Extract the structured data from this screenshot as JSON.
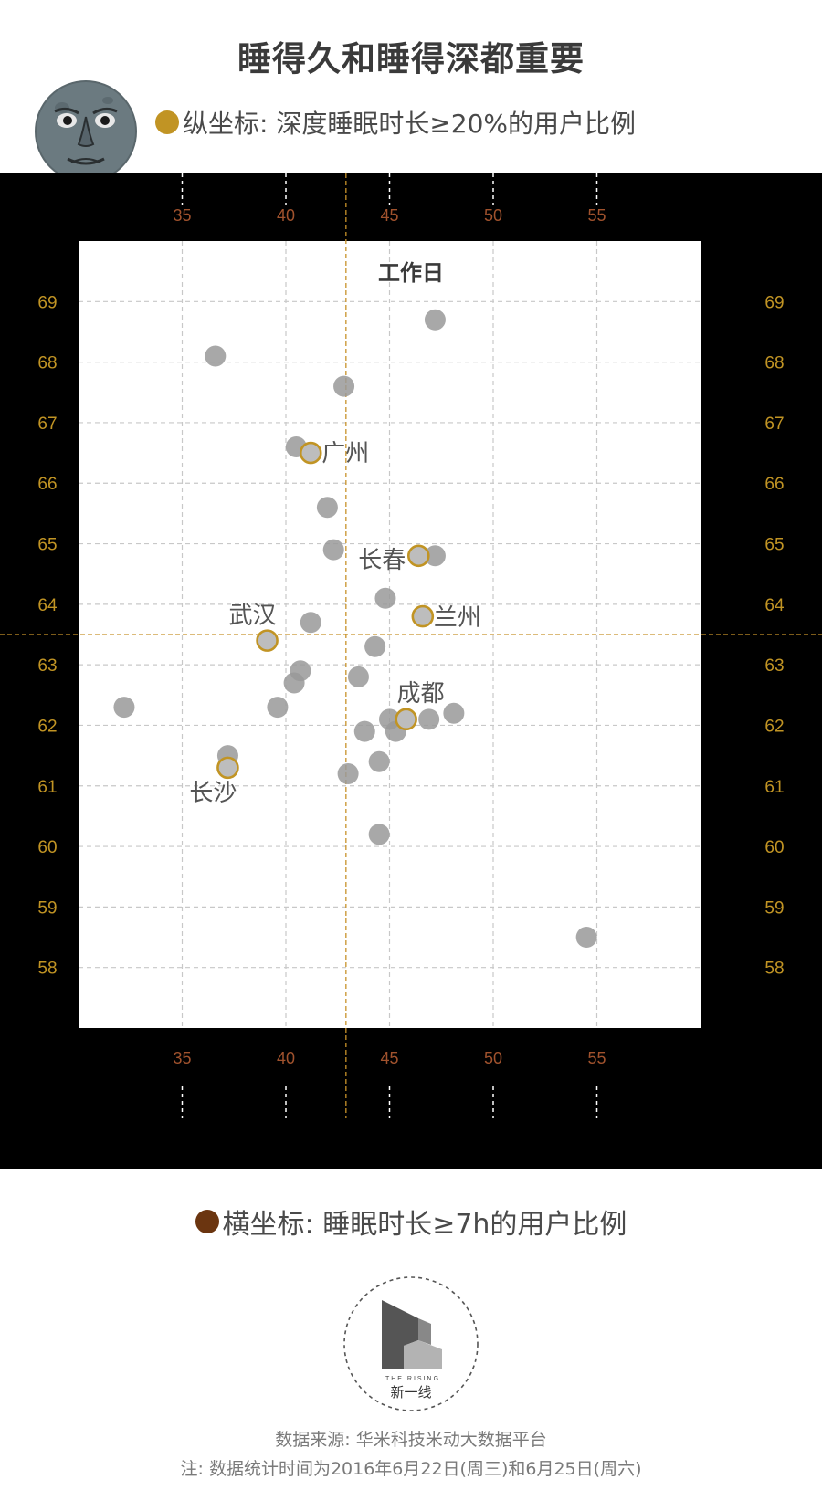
{
  "title": "睡得久和睡得深都重要",
  "y_legend": "纵坐标: 深度睡眠时长≥20%的用户比例",
  "x_legend": "横坐标: 睡眠时长≥7h的用户比例",
  "footer": {
    "source": "数据来源: 华米科技米动大数据平台",
    "note": "注: 数据统计时间为2016年6月22日(周三)和6月25日(周六)"
  },
  "logo": {
    "en": "THE RISING",
    "cn": "新一线"
  },
  "colors": {
    "y_axis_accent": "#c19424",
    "x_axis_accent": "#6b3510",
    "point_gray": "#999999",
    "highlight_ring": "#c19424",
    "mean_line": "#c8922a"
  },
  "chart_data": {
    "type": "scatter",
    "title": "工作日",
    "xlabel": "睡眠时长≥7h的用户比例",
    "ylabel": "深度睡眠时长≥20%的用户比例",
    "xlim": [
      30,
      60
    ],
    "ylim": [
      57,
      70
    ],
    "x_ticks": [
      35,
      40,
      45,
      50,
      55
    ],
    "y_ticks": [
      58,
      59,
      60,
      61,
      62,
      63,
      64,
      65,
      66,
      67,
      68,
      69
    ],
    "grid": true,
    "reference_lines": {
      "x": 42.9,
      "y": 63.5
    },
    "points": [
      {
        "x": 47.2,
        "y": 68.7
      },
      {
        "x": 36.6,
        "y": 68.1
      },
      {
        "x": 42.8,
        "y": 67.6
      },
      {
        "x": 40.5,
        "y": 66.6
      },
      {
        "x": 42.0,
        "y": 65.6
      },
      {
        "x": 42.3,
        "y": 64.9
      },
      {
        "x": 47.2,
        "y": 64.8
      },
      {
        "x": 44.8,
        "y": 64.1
      },
      {
        "x": 41.2,
        "y": 63.7
      },
      {
        "x": 44.3,
        "y": 63.3
      },
      {
        "x": 40.7,
        "y": 62.9
      },
      {
        "x": 43.5,
        "y": 62.8
      },
      {
        "x": 40.4,
        "y": 62.7
      },
      {
        "x": 32.2,
        "y": 62.3
      },
      {
        "x": 39.6,
        "y": 62.3
      },
      {
        "x": 48.1,
        "y": 62.2
      },
      {
        "x": 46.9,
        "y": 62.1
      },
      {
        "x": 45.0,
        "y": 62.1
      },
      {
        "x": 45.3,
        "y": 61.9
      },
      {
        "x": 43.8,
        "y": 61.9
      },
      {
        "x": 37.2,
        "y": 61.5
      },
      {
        "x": 44.5,
        "y": 61.4
      },
      {
        "x": 43.0,
        "y": 61.2
      },
      {
        "x": 44.5,
        "y": 60.2
      },
      {
        "x": 54.5,
        "y": 58.5
      }
    ],
    "highlighted": [
      {
        "name": "广州",
        "x": 41.2,
        "y": 66.5
      },
      {
        "name": "长春",
        "x": 46.4,
        "y": 64.8
      },
      {
        "name": "兰州",
        "x": 46.6,
        "y": 63.8
      },
      {
        "name": "武汉",
        "x": 39.1,
        "y": 63.4
      },
      {
        "name": "成都",
        "x": 45.8,
        "y": 62.1
      },
      {
        "name": "长沙",
        "x": 37.2,
        "y": 61.3
      }
    ]
  }
}
